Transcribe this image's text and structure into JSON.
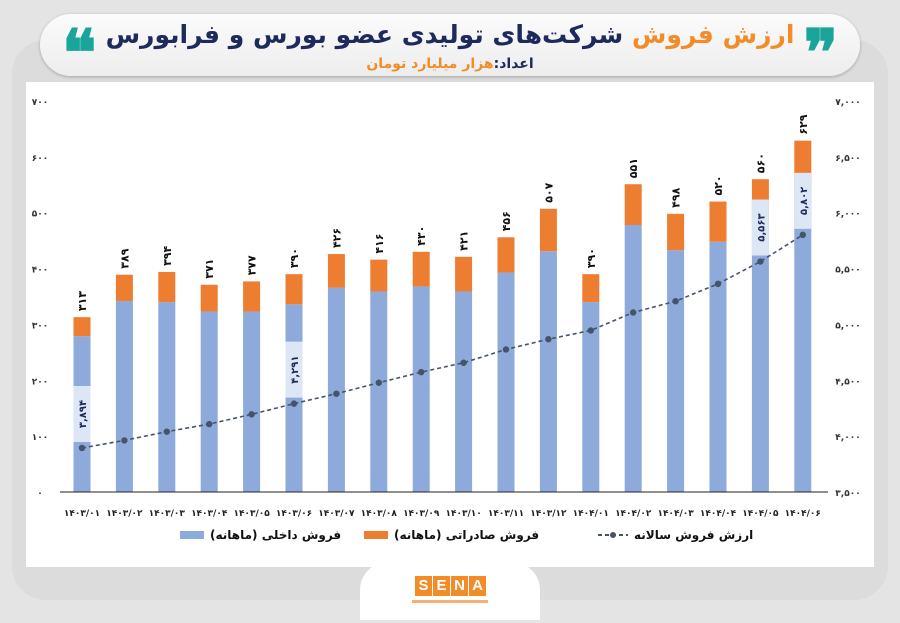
{
  "header": {
    "title_highlight": "ارزش فروش",
    "title_rest": "شرکت‌های تولیدی عضو بورس و فرابورس",
    "subtitle_label": "اعداد:",
    "subtitle_unit": "هزار میلیارد تومان",
    "quote_open": "❞",
    "quote_close": "❝"
  },
  "logo": {
    "letters": [
      "S",
      "E",
      "N",
      "A"
    ],
    "color": "#f28c28"
  },
  "colors": {
    "domestic": "#8eaadb",
    "export": "#ed7d31",
    "annual": "#44546a",
    "title_navy": "#1c2a5c",
    "title_orange": "#f28c28",
    "quote_teal": "#1aa59a"
  },
  "chart_data": {
    "type": "bar",
    "stacked": true,
    "categories": [
      "۱۴۰۳/۰۱",
      "۱۴۰۳/۰۲",
      "۱۴۰۳/۰۳",
      "۱۴۰۳/۰۴",
      "۱۴۰۳/۰۵",
      "۱۴۰۳/۰۶",
      "۱۴۰۳/۰۷",
      "۱۴۰۳/۰۸",
      "۱۴۰۳/۰۹",
      "۱۴۰۳/۱۰",
      "۱۴۰۳/۱۱",
      "۱۴۰۳/۱۲",
      "۱۴۰۴/۰۱",
      "۱۴۰۴/۰۲",
      "۱۴۰۴/۰۳",
      "۱۴۰۴/۰۴",
      "۱۴۰۴/۰۵",
      "۱۴۰۴/۰۶"
    ],
    "series": [
      {
        "name": "فروش داخلی (ماهانه)",
        "axis": "left",
        "values": [
          279,
          342,
          340,
          323,
          323,
          336,
          366,
          359,
          368,
          359,
          393,
          431,
          340,
          478,
          433,
          448,
          478,
          544
        ]
      },
      {
        "name": "فروش صادراتی (ماهانه)",
        "axis": "left",
        "values": [
          34,
          47,
          54,
          48,
          54,
          54,
          60,
          57,
          62,
          62,
          63,
          76,
          50,
          73,
          65,
          72,
          82,
          85
        ]
      },
      {
        "name": "ارزش فروش سالانه",
        "axis": "right",
        "type": "line",
        "values": [
          3894,
          3962,
          4040,
          4108,
          4195,
          4291,
          4380,
          4478,
          4573,
          4657,
          4776,
          4868,
          4946,
          5107,
          5208,
          5363,
          5563,
          5802
        ]
      }
    ],
    "totals": [
      313,
      389,
      394,
      371,
      377,
      390,
      426,
      416,
      430,
      421,
      456,
      507,
      390,
      551,
      498,
      520,
      560,
      629
    ],
    "total_labels": [
      "۳۱۳",
      "۳۸۹",
      "۳۹۴",
      "۳۷۱",
      "۳۷۷",
      "۳۹۰",
      "۴۲۶",
      "۴۱۶",
      "۴۳۰",
      "۴۲۱",
      "۴۵۶",
      "۵۰۷",
      "۳۹۰",
      "۵۵۱",
      "۴۹۸",
      "۵۲۰",
      "۵۶۰",
      "۶۲۹"
    ],
    "annual_labels": [
      {
        "index": 0,
        "text": "۳,۸۹۴"
      },
      {
        "index": 5,
        "text": "۴,۲۹۱"
      },
      {
        "index": 16,
        "text": "۵,۵۶۳"
      },
      {
        "index": 17,
        "text": "۵,۸۰۲"
      }
    ],
    "left_axis": {
      "ylim": [
        0,
        700
      ],
      "ticks": [
        0,
        100,
        200,
        300,
        400,
        500,
        600,
        700
      ],
      "tick_labels": [
        "۰",
        "۱۰۰",
        "۲۰۰",
        "۳۰۰",
        "۴۰۰",
        "۵۰۰",
        "۶۰۰",
        "۷۰۰"
      ]
    },
    "right_axis": {
      "ylim": [
        3500,
        7000
      ],
      "ticks": [
        3500,
        4000,
        4500,
        5000,
        5500,
        6000,
        6500,
        7000
      ],
      "tick_labels": [
        "۳,۵۰۰",
        "۴,۰۰۰",
        "۴,۵۰۰",
        "۵,۰۰۰",
        "۵,۵۰۰",
        "۶,۰۰۰",
        "۶,۵۰۰",
        "۷,۰۰۰"
      ]
    },
    "grid": false,
    "legend": {
      "position": "bottom",
      "items": [
        "ارزش فروش سالانه",
        "فروش صادراتی (ماهانه)",
        "فروش داخلی (ماهانه)"
      ]
    }
  }
}
